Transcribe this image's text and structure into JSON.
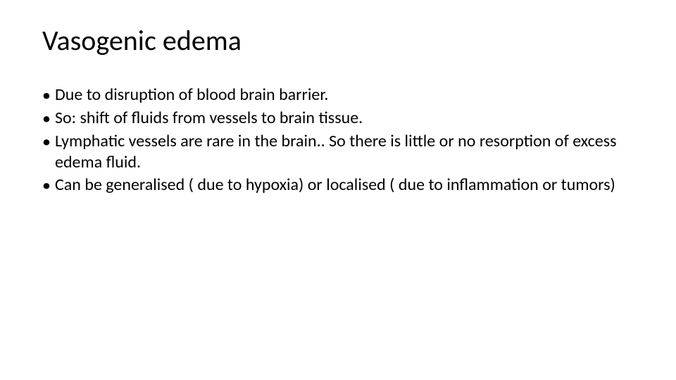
{
  "slide": {
    "title": "Vasogenic edema",
    "title_fontsize": 40,
    "body_fontsize": 24,
    "background_color": "#ffffff",
    "text_color": "#000000",
    "font_family": "Calibri",
    "bullet_char": "•",
    "bullets": [
      "Due to disruption of blood brain barrier.",
      "So: shift of fluids from vessels to brain tissue.",
      "Lymphatic vessels are rare in the brain.. So there is little or no resorption of excess edema fluid.",
      "Can be generalised ( due to hypoxia)  or localised ( due to inflammation or tumors)"
    ]
  }
}
